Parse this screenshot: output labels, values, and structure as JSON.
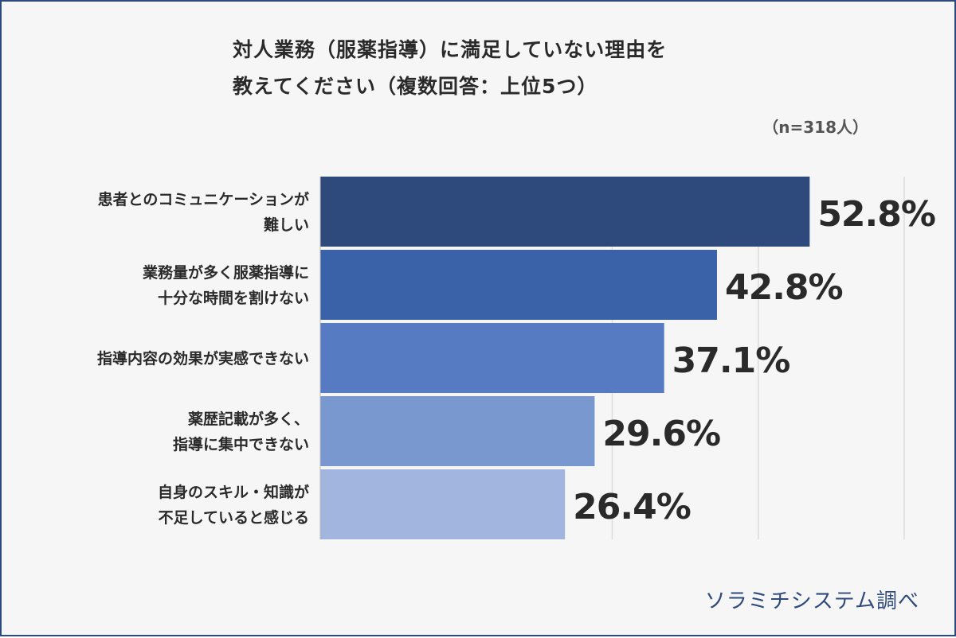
{
  "title_line1": "対人業務（服薬指導）に満足していない理由を",
  "title_line2": "教えてください（複数回答：上位5つ）",
  "sample_size": "（n=318人）",
  "source": "ソラミチシステム調べ",
  "colors": {
    "frame": "#2e4a7d",
    "background": "#f6f6f6",
    "text": "#2a2a2a",
    "bars": [
      "#2e4a7d",
      "#3a62a8",
      "#567bc2",
      "#7898cf",
      "#a1b5df"
    ]
  },
  "chart_data": {
    "type": "bar",
    "orientation": "horizontal",
    "title": "対人業務（服薬指導）に満足していない理由を教えてください（複数回答：上位5つ）",
    "categories": [
      [
        "患者とのコミュニケーションが",
        "難しい"
      ],
      [
        "業務量が多く服薬指導に",
        "十分な時間を割けない"
      ],
      [
        "指導内容の効果が実感できない"
      ],
      [
        "薬歴記載が多く、",
        "指導に集中できない"
      ],
      [
        "自身のスキル・知識が",
        "不足していると感じる"
      ]
    ],
    "values": [
      52.8,
      42.8,
      37.1,
      29.6,
      26.4
    ],
    "labels": [
      "52.8%",
      "42.8%",
      "37.1%",
      "29.6%",
      "26.4%"
    ],
    "xlim": [
      0,
      63
    ],
    "grid": true
  }
}
